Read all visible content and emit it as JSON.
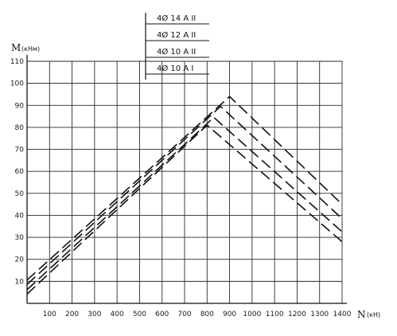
{
  "chart_data": {
    "type": "line",
    "title": "",
    "xlabel": "N",
    "xunit": "(кН)",
    "ylabel": "M",
    "yunit": "(кНм)",
    "xlim": [
      0,
      1400
    ],
    "ylim": [
      0,
      110
    ],
    "xticks": [
      100,
      200,
      300,
      400,
      500,
      600,
      700,
      800,
      900,
      1000,
      1100,
      1200,
      1300,
      1400
    ],
    "xtick_labels": [
      "100",
      "200",
      "300",
      "400",
      "500",
      "600",
      "700",
      "800",
      "900",
      "1000",
      "1100",
      "1200",
      "1300",
      "1400"
    ],
    "yticks": [
      10,
      20,
      30,
      40,
      50,
      60,
      70,
      80,
      90,
      100,
      110
    ],
    "ytick_labels": [
      "10",
      "20",
      "30",
      "40",
      "50",
      "60",
      "70",
      "80",
      "90",
      "100",
      "110"
    ],
    "grid": true,
    "legend_position": "top-center",
    "series": [
      {
        "name": "4Ø 14 A II",
        "x": [
          0,
          900,
          1400
        ],
        "y": [
          10.6,
          94,
          45
        ]
      },
      {
        "name": "4Ø 12 A II",
        "x": [
          0,
          860,
          1400
        ],
        "y": [
          8.6,
          89.5,
          38.5
        ]
      },
      {
        "name": "4Ø 10 A II",
        "x": [
          0,
          830,
          1400
        ],
        "y": [
          6.2,
          84.5,
          32.5
        ]
      },
      {
        "name": "4Ø 10 A I",
        "x": [
          0,
          800,
          1400
        ],
        "y": [
          4.2,
          81,
          28
        ]
      }
    ]
  }
}
